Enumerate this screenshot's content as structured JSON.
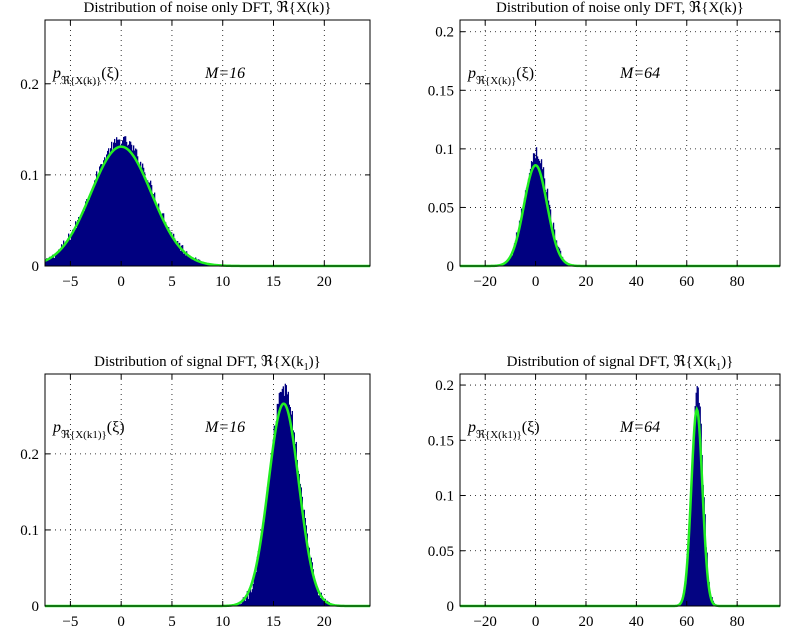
{
  "chart_data": [
    {
      "type": "area",
      "title": "Distribution of noise only DFT, ℜ{X(k)}",
      "pdf_label": "pℜ{X(k)}(ξ)",
      "annotation": "M=16",
      "xlim": [
        -7.5,
        24.5
      ],
      "ylim": [
        0,
        0.27
      ],
      "xticks": [
        -5,
        0,
        5,
        10,
        15,
        20
      ],
      "xtick_labels": [
        "−5",
        "0",
        "5",
        "10",
        "15",
        "20"
      ],
      "yticks": [
        0,
        0.1,
        0.2
      ],
      "ytick_labels": [
        "0",
        "0.1",
        "0.2"
      ],
      "grid": true,
      "series": [
        {
          "kind": "histogram",
          "color": "#000080",
          "mean": 0,
          "std": 3.0,
          "peak": 0.138,
          "noise": 0.006
        },
        {
          "kind": "pdf-curve",
          "color": "#22ee22",
          "mean": 0,
          "std": 3.0,
          "peak": 0.131
        }
      ]
    },
    {
      "type": "area",
      "title": "Distribution of noise only DFT, ℜ{X(k)}",
      "pdf_label": "pℜ{X(k)}(ξ)",
      "annotation": "M=64",
      "xlim": [
        -30,
        97
      ],
      "ylim": [
        0,
        0.21
      ],
      "xticks": [
        -20,
        0,
        20,
        40,
        60,
        80
      ],
      "xtick_labels": [
        "−20",
        "0",
        "20",
        "40",
        "60",
        "80"
      ],
      "yticks": [
        0,
        0.05,
        0.1,
        0.15,
        0.2
      ],
      "ytick_labels": [
        "0",
        "0.05",
        "0.1",
        "0.15",
        "0.2"
      ],
      "grid": true,
      "series": [
        {
          "kind": "histogram",
          "color": "#000080",
          "mean": 0,
          "std": 4.6,
          "peak": 0.097,
          "noise": 0.006
        },
        {
          "kind": "pdf-curve",
          "color": "#22ee22",
          "mean": 0,
          "std": 4.6,
          "peak": 0.086
        }
      ]
    },
    {
      "type": "area",
      "title": "Distribution of signal DFT, ℜ{X(k1)}",
      "pdf_label": "pℜ{X(k1)}(ξ)",
      "annotation": "M=16",
      "xlim": [
        -7.5,
        24.5
      ],
      "ylim": [
        0,
        0.305
      ],
      "xticks": [
        -5,
        0,
        5,
        10,
        15,
        20
      ],
      "xtick_labels": [
        "−5",
        "0",
        "5",
        "10",
        "15",
        "20"
      ],
      "yticks": [
        0,
        0.1,
        0.2
      ],
      "ytick_labels": [
        "0",
        "0.1",
        "0.2"
      ],
      "grid": true,
      "series": [
        {
          "kind": "histogram",
          "color": "#000080",
          "mean": 16,
          "std": 1.5,
          "peak": 0.285,
          "noise": 0.01
        },
        {
          "kind": "pdf-curve",
          "color": "#22ee22",
          "mean": 16,
          "std": 1.5,
          "peak": 0.266
        }
      ]
    },
    {
      "type": "area",
      "title": "Distribution of signal DFT, ℜ{X(k1)}",
      "pdf_label": "pℜ{X(k1)}(ξ)",
      "annotation": "M=64",
      "xlim": [
        -30,
        97
      ],
      "ylim": [
        0,
        0.21
      ],
      "xticks": [
        -20,
        0,
        20,
        40,
        60,
        80
      ],
      "xtick_labels": [
        "−20",
        "0",
        "20",
        "40",
        "60",
        "80"
      ],
      "yticks": [
        0,
        0.05,
        0.1,
        0.15,
        0.2
      ],
      "ytick_labels": [
        "0",
        "0.05",
        "0.1",
        "0.15",
        "0.2"
      ],
      "grid": true,
      "series": [
        {
          "kind": "histogram",
          "color": "#000080",
          "mean": 64,
          "std": 2.2,
          "peak": 0.199,
          "noise": 0.008
        },
        {
          "kind": "pdf-curve",
          "color": "#22ee22",
          "mean": 64,
          "std": 2.2,
          "peak": 0.178
        }
      ]
    }
  ]
}
